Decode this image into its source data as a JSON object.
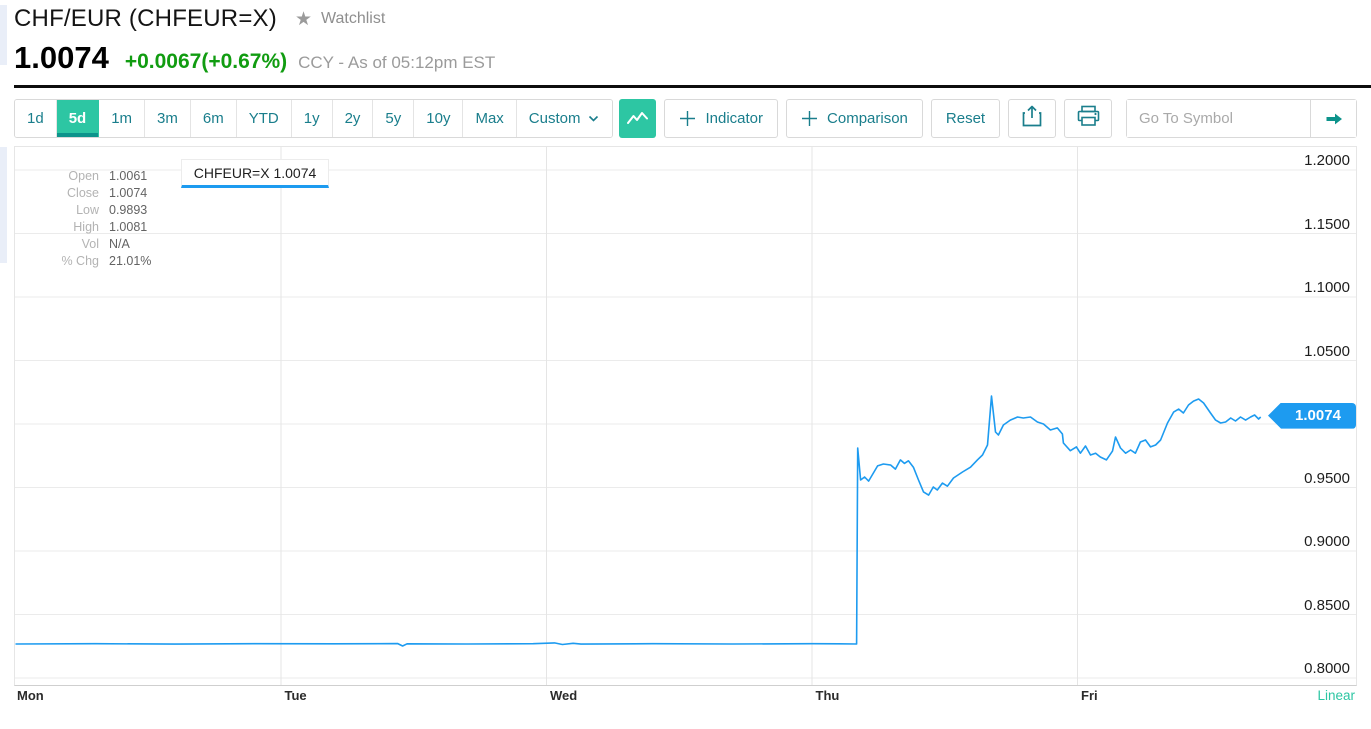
{
  "header": {
    "title": "CHF/EUR (CHFEUR=X)",
    "watchlist_label": "Watchlist",
    "price": "1.0074",
    "change": "+0.0067(+0.67%)",
    "meta": "CCY - As of 05:12pm EST"
  },
  "toolbar": {
    "ranges": [
      {
        "label": "1d",
        "active": false
      },
      {
        "label": "5d",
        "active": true
      },
      {
        "label": "1m",
        "active": false
      },
      {
        "label": "3m",
        "active": false
      },
      {
        "label": "6m",
        "active": false
      },
      {
        "label": "YTD",
        "active": false
      },
      {
        "label": "1y",
        "active": false
      },
      {
        "label": "2y",
        "active": false
      },
      {
        "label": "5y",
        "active": false
      },
      {
        "label": "10y",
        "active": false
      },
      {
        "label": "Max",
        "active": false
      },
      {
        "label": "Custom",
        "active": false,
        "has_dropdown": true
      }
    ],
    "chart_type_icon": "line-chart-icon",
    "indicator_label": "Indicator",
    "comparison_label": "Comparison",
    "reset_label": "Reset",
    "share_icon": "share-icon",
    "print_icon": "print-icon",
    "go_to_symbol_placeholder": "Go To Symbol",
    "go_icon": "arrow-right-icon"
  },
  "legend": {
    "tooltip": "CHFEUR=X 1.0074",
    "rows": [
      {
        "label": "Open",
        "value": "1.0061"
      },
      {
        "label": "Close",
        "value": "1.0074"
      },
      {
        "label": "Low",
        "value": "0.9893"
      },
      {
        "label": "High",
        "value": "1.0081"
      },
      {
        "label": "Vol",
        "value": "N/A"
      },
      {
        "label": "% Chg",
        "value": "21.01%"
      }
    ]
  },
  "chart_data": {
    "type": "line",
    "symbol": "CHFEUR=X",
    "title": "CHF/EUR 5 day chart",
    "categories": [
      "Mon",
      "Tue",
      "Wed",
      "Thu",
      "Fri"
    ],
    "scale_label": "Linear",
    "last_price": 1.0074,
    "price_tag_label": "1.0074",
    "y_gridlines": [
      1.2,
      1.15,
      1.1,
      1.05,
      1.0,
      0.95,
      0.9,
      0.85,
      0.8
    ],
    "y_ticks": [
      {
        "value": 1.2,
        "label": "1.2000"
      },
      {
        "value": 1.15,
        "label": "1.1500"
      },
      {
        "value": 1.1,
        "label": "1.1000"
      },
      {
        "value": 1.05,
        "label": "1.0500"
      },
      {
        "value": 0.95,
        "label": "0.9500"
      },
      {
        "value": 0.9,
        "label": "0.9000"
      },
      {
        "value": 0.85,
        "label": "0.8500"
      },
      {
        "value": 0.8,
        "label": "0.8000"
      }
    ],
    "ylim_visible": [
      0.7937,
      1.2189
    ],
    "x_unit": "days_from_monday_open",
    "points": [
      [
        0.0,
        0.8268
      ],
      [
        0.3,
        0.827
      ],
      [
        0.6,
        0.8267
      ],
      [
        0.9,
        0.827
      ],
      [
        1.2,
        0.8269
      ],
      [
        1.44,
        0.8271
      ],
      [
        1.458,
        0.8252
      ],
      [
        1.475,
        0.8269
      ],
      [
        1.7,
        0.8268
      ],
      [
        1.95,
        0.827
      ],
      [
        2.03,
        0.8276
      ],
      [
        2.06,
        0.8264
      ],
      [
        2.1,
        0.8273
      ],
      [
        2.13,
        0.8267
      ],
      [
        2.4,
        0.827
      ],
      [
        2.7,
        0.8268
      ],
      [
        3.0,
        0.827
      ],
      [
        3.1,
        0.8269
      ],
      [
        3.168,
        0.8268
      ],
      [
        3.172,
        0.981
      ],
      [
        3.183,
        0.9559
      ],
      [
        3.198,
        0.9583
      ],
      [
        3.213,
        0.955
      ],
      [
        3.247,
        0.967
      ],
      [
        3.269,
        0.9685
      ],
      [
        3.296,
        0.9677
      ],
      [
        3.314,
        0.9645
      ],
      [
        3.333,
        0.9717
      ],
      [
        3.348,
        0.969
      ],
      [
        3.363,
        0.971
      ],
      [
        3.382,
        0.966
      ],
      [
        3.401,
        0.9559
      ],
      [
        3.42,
        0.9465
      ],
      [
        3.439,
        0.944
      ],
      [
        3.457,
        0.9504
      ],
      [
        3.472,
        0.948
      ],
      [
        3.491,
        0.9535
      ],
      [
        3.51,
        0.951
      ],
      [
        3.533,
        0.9575
      ],
      [
        3.567,
        0.9622
      ],
      [
        3.597,
        0.966
      ],
      [
        3.623,
        0.9717
      ],
      [
        3.642,
        0.9756
      ],
      [
        3.661,
        0.9835
      ],
      [
        3.676,
        1.022
      ],
      [
        3.691,
        0.9937
      ],
      [
        3.702,
        0.9913
      ],
      [
        3.721,
        0.9992
      ],
      [
        3.747,
        1.0031
      ],
      [
        3.774,
        1.0055
      ],
      [
        3.796,
        1.0047
      ],
      [
        3.823,
        1.0055
      ],
      [
        3.849,
        1.0016
      ],
      [
        3.872,
        1.0
      ],
      [
        3.898,
        0.9953
      ],
      [
        3.924,
        0.9969
      ],
      [
        3.943,
        0.9921
      ],
      [
        3.947,
        0.985
      ],
      [
        3.973,
        0.979
      ],
      [
        3.996,
        0.982
      ],
      [
        4.011,
        0.977
      ],
      [
        4.03,
        0.9827
      ],
      [
        4.049,
        0.9756
      ],
      [
        4.068,
        0.977
      ],
      [
        4.086,
        0.974
      ],
      [
        4.109,
        0.9717
      ],
      [
        4.132,
        0.9787
      ],
      [
        4.143,
        0.9898
      ],
      [
        4.162,
        0.9811
      ],
      [
        4.181,
        0.977
      ],
      [
        4.2,
        0.9795
      ],
      [
        4.218,
        0.977
      ],
      [
        4.237,
        0.9858
      ],
      [
        4.256,
        0.9874
      ],
      [
        4.275,
        0.982
      ],
      [
        4.294,
        0.9835
      ],
      [
        4.313,
        0.9874
      ],
      [
        4.339,
        1.0008
      ],
      [
        4.362,
        1.0094
      ],
      [
        4.381,
        1.0117
      ],
      [
        4.399,
        1.0087
      ],
      [
        4.418,
        1.015
      ],
      [
        4.437,
        1.018
      ],
      [
        4.456,
        1.0197
      ],
      [
        4.475,
        1.0165
      ],
      [
        4.501,
        1.0087
      ],
      [
        4.52,
        1.0031
      ],
      [
        4.539,
        1.0008
      ],
      [
        4.558,
        1.0016
      ],
      [
        4.577,
        1.0047
      ],
      [
        4.595,
        1.0024
      ],
      [
        4.614,
        1.0055
      ],
      [
        4.633,
        1.0031
      ],
      [
        4.652,
        1.0055
      ],
      [
        4.667,
        1.0071
      ],
      [
        4.682,
        1.0039
      ],
      [
        4.69,
        1.0055
      ]
    ]
  },
  "colors": {
    "accent_teal": "#2dc6a3",
    "accent_teal_dark": "#0d938b",
    "toolbar_text": "#1a7e8c",
    "line_blue": "#1d9bf0",
    "positive_green": "#119c11"
  }
}
